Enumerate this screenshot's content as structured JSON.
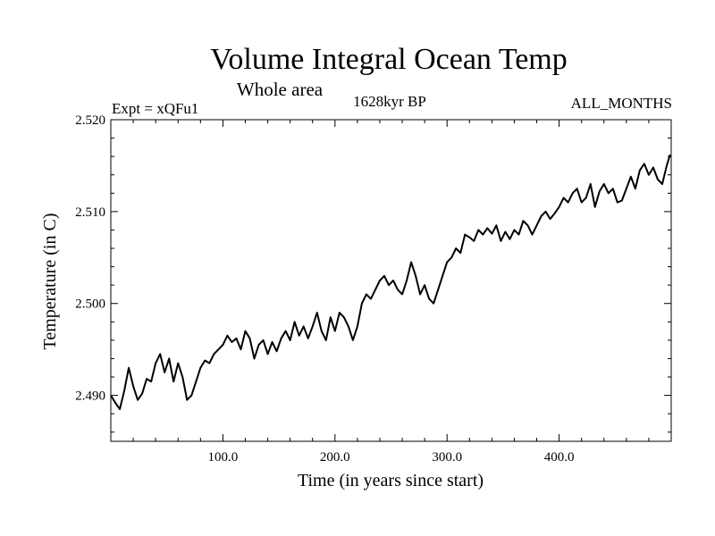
{
  "chart_data": {
    "type": "line",
    "title": "Volume Integral Ocean Temp",
    "subtitle": "Whole area",
    "experiment_label": "Expt = xQFu1",
    "period_label": "1628kyr BP",
    "months_label": "ALL_MONTHS",
    "xlabel": "Time (in years since start)",
    "ylabel": "Temperature (in C)",
    "xlim": [
      0,
      500
    ],
    "ylim": [
      2.485,
      2.52
    ],
    "x_ticks": [
      100,
      200,
      300,
      400
    ],
    "x_tick_labels": [
      "100.0",
      "200.0",
      "300.0",
      "400.0"
    ],
    "y_ticks": [
      2.49,
      2.5,
      2.51,
      2.52
    ],
    "y_tick_labels": [
      "2.490",
      "2.500",
      "2.510",
      "2.520"
    ],
    "grid": false,
    "series": [
      {
        "name": "Volume integral ocean temperature",
        "x": [
          0,
          4,
          8,
          12,
          16,
          20,
          24,
          28,
          32,
          36,
          40,
          44,
          48,
          52,
          56,
          60,
          64,
          68,
          72,
          76,
          80,
          84,
          88,
          92,
          96,
          100,
          104,
          108,
          112,
          116,
          120,
          124,
          128,
          132,
          136,
          140,
          144,
          148,
          152,
          156,
          160,
          164,
          168,
          172,
          176,
          180,
          184,
          188,
          192,
          196,
          200,
          204,
          208,
          212,
          216,
          220,
          224,
          228,
          232,
          236,
          240,
          244,
          248,
          252,
          256,
          260,
          264,
          268,
          272,
          276,
          280,
          284,
          288,
          292,
          296,
          300,
          304,
          308,
          312,
          316,
          320,
          324,
          328,
          332,
          336,
          340,
          344,
          348,
          352,
          356,
          360,
          364,
          368,
          372,
          376,
          380,
          384,
          388,
          392,
          396,
          400,
          404,
          408,
          412,
          416,
          420,
          424,
          428,
          432,
          436,
          440,
          444,
          448,
          452,
          456,
          460,
          464,
          468,
          472,
          476,
          480,
          484,
          488,
          492,
          496,
          499
        ],
        "values": [
          2.49,
          2.4892,
          2.4885,
          2.4905,
          2.493,
          2.491,
          2.4895,
          2.4902,
          2.4918,
          2.4915,
          2.4935,
          2.4945,
          2.4925,
          2.494,
          2.4915,
          2.4935,
          2.492,
          2.4895,
          2.49,
          2.4915,
          2.493,
          2.4938,
          2.4935,
          2.4945,
          2.495,
          2.4955,
          2.4965,
          2.4958,
          2.4962,
          2.495,
          2.497,
          2.4962,
          2.494,
          2.4955,
          2.496,
          2.4945,
          2.4958,
          2.4948,
          2.4962,
          2.497,
          2.496,
          2.498,
          2.4965,
          2.4975,
          2.4962,
          2.4975,
          2.499,
          2.497,
          2.496,
          2.4985,
          2.497,
          2.499,
          2.4985,
          2.4975,
          2.496,
          2.4975,
          2.5,
          2.501,
          2.5005,
          2.5015,
          2.5025,
          2.503,
          2.502,
          2.5025,
          2.5015,
          2.501,
          2.5025,
          2.5045,
          2.503,
          2.501,
          2.502,
          2.5005,
          2.5,
          2.5015,
          2.503,
          2.5045,
          2.505,
          2.506,
          2.5055,
          2.5075,
          2.5072,
          2.5068,
          2.508,
          2.5075,
          2.5082,
          2.5076,
          2.5085,
          2.5068,
          2.5078,
          2.507,
          2.508,
          2.5075,
          2.509,
          2.5085,
          2.5075,
          2.5085,
          2.5095,
          2.51,
          2.5092,
          2.5098,
          2.5105,
          2.5115,
          2.511,
          2.512,
          2.5125,
          2.511,
          2.5115,
          2.513,
          2.5105,
          2.5122,
          2.513,
          2.512,
          2.5125,
          2.511,
          2.5112,
          2.5125,
          2.5138,
          2.5125,
          2.5145,
          2.5152,
          2.514,
          2.5148,
          2.5135,
          2.513,
          2.515,
          2.5162
        ]
      }
    ]
  }
}
